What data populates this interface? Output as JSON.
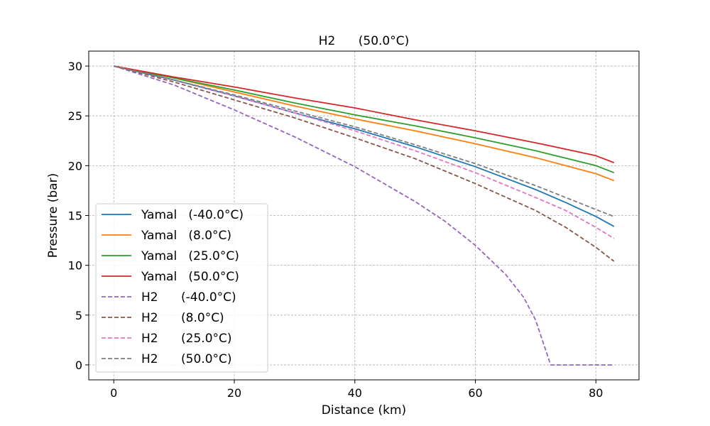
{
  "chart_data": {
    "type": "line",
    "title": "H2      (50.0°C)",
    "xlabel": "Distance (km)",
    "ylabel": "Pressure (bar)",
    "xlim": [
      -4.15,
      87.15
    ],
    "ylim": [
      -1.5,
      31.5
    ],
    "xticks": [
      0,
      20,
      40,
      60,
      80
    ],
    "yticks": [
      0,
      5,
      10,
      15,
      20,
      25,
      30
    ],
    "grid": true,
    "legend_position": "lower-left",
    "series": [
      {
        "name": "Yamal   (-40.0°C)",
        "color": "#1f77b4",
        "style": "solid",
        "x": [
          0,
          10,
          20,
          30,
          40,
          50,
          60,
          70,
          75,
          80,
          83
        ],
        "y": [
          30,
          28.6,
          27.0,
          25.3,
          23.7,
          21.9,
          19.9,
          17.6,
          16.3,
          14.9,
          13.9
        ]
      },
      {
        "name": "Yamal   (8.0°C)",
        "color": "#ff7f0e",
        "style": "solid",
        "x": [
          0,
          10,
          20,
          30,
          40,
          50,
          60,
          70,
          80,
          83
        ],
        "y": [
          30,
          28.8,
          27.4,
          26.0,
          24.7,
          23.5,
          22.2,
          20.8,
          19.2,
          18.5
        ]
      },
      {
        "name": "Yamal   (25.0°C)",
        "color": "#2ca02c",
        "style": "solid",
        "x": [
          0,
          10,
          20,
          30,
          40,
          50,
          60,
          70,
          80,
          83
        ],
        "y": [
          30,
          28.8,
          27.6,
          26.3,
          25.1,
          24.0,
          22.8,
          21.5,
          20.0,
          19.3
        ]
      },
      {
        "name": "Yamal   (50.0°C)",
        "color": "#d62728",
        "style": "solid",
        "x": [
          0,
          10,
          20,
          30,
          40,
          50,
          60,
          70,
          80,
          83
        ],
        "y": [
          30,
          28.9,
          27.9,
          26.8,
          25.8,
          24.6,
          23.5,
          22.3,
          21.0,
          20.3
        ]
      },
      {
        "name": "H2      (-40.0°C)",
        "color": "#9467bd",
        "style": "dashed",
        "x": [
          0,
          10,
          20,
          30,
          40,
          50,
          55,
          60,
          65,
          68,
          70,
          72.5,
          75,
          80,
          83
        ],
        "y": [
          30,
          28.1,
          25.6,
          22.9,
          19.9,
          16.4,
          14.4,
          12.0,
          9.1,
          6.8,
          4.5,
          0.0,
          0.0,
          0.0,
          0.0
        ]
      },
      {
        "name": "H2      (8.0°C)",
        "color": "#8c564b",
        "style": "dashed",
        "x": [
          0,
          10,
          20,
          30,
          40,
          50,
          60,
          70,
          75,
          80,
          83
        ],
        "y": [
          30,
          28.4,
          26.6,
          24.8,
          22.8,
          20.7,
          18.2,
          15.5,
          13.8,
          11.8,
          10.4
        ]
      },
      {
        "name": "H2      (25.0°C)",
        "color": "#e377c2",
        "style": "dashed",
        "x": [
          0,
          10,
          20,
          30,
          40,
          50,
          60,
          70,
          75,
          80,
          83
        ],
        "y": [
          30,
          28.6,
          27.0,
          25.3,
          23.5,
          21.5,
          19.3,
          16.8,
          15.5,
          13.8,
          12.7
        ]
      },
      {
        "name": "H2      (50.0°C)",
        "color": "#7f7f7f",
        "style": "dashed",
        "x": [
          0,
          10,
          20,
          30,
          40,
          50,
          60,
          70,
          75,
          80,
          83
        ],
        "y": [
          30,
          28.6,
          27.1,
          25.5,
          23.9,
          22.1,
          20.2,
          18.0,
          16.8,
          15.6,
          14.9
        ]
      }
    ]
  }
}
